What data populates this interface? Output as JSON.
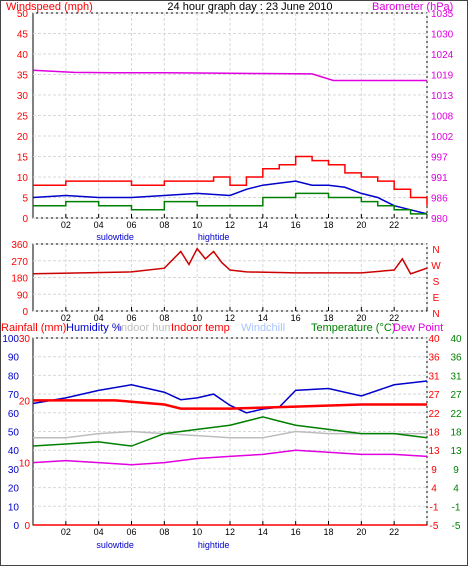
{
  "header": {
    "title": "24 hour graph day : 23 June 2010",
    "left_label": "Windspeed (mph)",
    "right_label": "Barometer (hPa)"
  },
  "colors": {
    "red": "#ff0000",
    "darkred": "#cc0000",
    "blue": "#0000cc",
    "green": "#008000",
    "magenta": "#e000e0",
    "gray": "#bdbdbd",
    "lightblue": "#aac4ff",
    "grid": "#d8d8d8"
  },
  "chart_data": [
    {
      "type": "line",
      "panel": "wind",
      "title": "24 hour graph day : 23 June 2010",
      "x_ticks": [
        "02",
        "04",
        "06",
        "08",
        "10",
        "12",
        "14",
        "16",
        "18",
        "20",
        "22",
        ""
      ],
      "x_annotations": [
        {
          "text": "sulowtide",
          "near_hour": 5
        },
        {
          "text": "hightide",
          "near_hour": 11
        }
      ],
      "left_axis": {
        "label": "Windspeed (mph)",
        "ticks": [
          0,
          5,
          10,
          15,
          20,
          25,
          30,
          35,
          40,
          45,
          50
        ],
        "range": [
          0,
          50
        ]
      },
      "right_axis": {
        "label": "Barometer (hPa)",
        "ticks": [
          "980",
          "986",
          "991",
          "997",
          "1002",
          "1008",
          "1013",
          "1019",
          "1024",
          "1030",
          "1035"
        ],
        "range": [
          980,
          1035.9
        ]
      },
      "grid": true,
      "series": [
        {
          "name": "Windspeed (mph)",
          "color": "red",
          "axis": "left",
          "style": "step",
          "x": [
            0,
            2,
            4,
            6,
            8,
            10,
            11,
            12,
            13,
            14,
            15,
            16,
            17,
            18,
            19,
            20,
            21,
            22,
            23,
            24
          ],
          "y": [
            8,
            9,
            9,
            8,
            9,
            9,
            10,
            8,
            10,
            12,
            13,
            15,
            14,
            13,
            11,
            10,
            9,
            7,
            5,
            3
          ]
        },
        {
          "name": "Windspeed average",
          "color": "blue",
          "axis": "left",
          "x": [
            0,
            2,
            4,
            6,
            8,
            10,
            12,
            13,
            14,
            15,
            16,
            17,
            18,
            19,
            20,
            21,
            22,
            23,
            24
          ],
          "y": [
            5,
            5.5,
            5,
            5,
            5.5,
            6,
            5.5,
            7,
            8,
            8.5,
            9,
            8,
            8,
            7.5,
            6,
            5,
            3,
            2,
            1
          ]
        },
        {
          "name": "Wind gust",
          "color": "green",
          "axis": "left",
          "style": "step",
          "x": [
            0,
            2,
            4,
            6,
            8,
            10,
            12,
            14,
            16,
            18,
            20,
            21,
            22,
            23,
            24
          ],
          "y": [
            3,
            4,
            3,
            2,
            4,
            3,
            3,
            5,
            6,
            5,
            4,
            3,
            2,
            1,
            1
          ]
        },
        {
          "name": "Barometer (hPa)",
          "color": "magenta",
          "axis": "right",
          "x": [
            0,
            2.5,
            5,
            8,
            11,
            14,
            17,
            18.3,
            24
          ],
          "y": [
            1020.3,
            1019.7,
            1019.6,
            1019.6,
            1019.5,
            1019.4,
            1019.3,
            1017.5,
            1017.5
          ]
        }
      ]
    },
    {
      "type": "line",
      "panel": "direction",
      "x_ticks": [
        "02",
        "04",
        "06",
        "08",
        "10",
        "12",
        "14",
        "16",
        "18",
        "20",
        "22",
        ""
      ],
      "left_axis": {
        "ticks": [
          0,
          90,
          180,
          270,
          360
        ],
        "range": [
          0,
          360
        ]
      },
      "right_axis": {
        "ticks": [
          "N",
          "E",
          "S",
          "W",
          "N"
        ]
      },
      "grid": true,
      "series": [
        {
          "name": "Wind direction",
          "color": "darkred",
          "x": [
            0,
            3,
            6,
            8,
            9,
            9.5,
            10,
            10.5,
            11,
            11.5,
            12,
            13,
            16,
            20,
            22,
            22.5,
            23,
            23.5,
            24
          ],
          "y": [
            200,
            205,
            210,
            230,
            320,
            250,
            335,
            280,
            320,
            260,
            220,
            210,
            205,
            205,
            220,
            280,
            200,
            215,
            230
          ]
        }
      ]
    },
    {
      "type": "line",
      "panel": "temperature",
      "x_ticks": [
        "02",
        "04",
        "06",
        "08",
        "10",
        "12",
        "14",
        "16",
        "18",
        "20",
        "22",
        ""
      ],
      "x_annotations": [
        {
          "text": "sulowtide",
          "near_hour": 5
        },
        {
          "text": "hightide",
          "near_hour": 11
        }
      ],
      "legend": [
        {
          "text": "Rainfall (mm)",
          "color": "red"
        },
        {
          "text": "Humidity %",
          "color": "blue"
        },
        {
          "text": "Indoor hum",
          "color": "gray"
        },
        {
          "text": "Indoor temp",
          "color": "red"
        },
        {
          "text": "Windchill",
          "color": "lightblue"
        },
        {
          "text": "Temperature (°C)",
          "color": "green"
        },
        {
          "text": "Dew Point",
          "color": "magenta"
        }
      ],
      "axes": {
        "rain_left": [
          "0",
          "10",
          "20",
          "30"
        ],
        "humidity": [
          "0",
          "10",
          "20",
          "30",
          "40",
          "50",
          "60",
          "70",
          "80",
          "90",
          "100"
        ],
        "temp_right_inner": [
          "-5",
          "-1",
          "4",
          "9",
          "13",
          "18",
          "22",
          "27",
          "31",
          "36",
          "40"
        ],
        "temp_right_outer": [
          "-5",
          "-1",
          "4",
          "9",
          "13",
          "18",
          "22",
          "27",
          "31",
          "36",
          "40"
        ]
      },
      "temp_range": [
        -5,
        40
      ],
      "grid": true,
      "series": [
        {
          "name": "Humidity %",
          "color": "blue",
          "axis": "humidity",
          "x": [
            0,
            2,
            4,
            6,
            8,
            9,
            10,
            11,
            12,
            13,
            14,
            15,
            16,
            18,
            20,
            22,
            24
          ],
          "y": [
            65,
            68,
            72,
            75,
            71,
            67,
            68,
            70,
            64,
            60,
            62,
            63,
            72,
            73,
            69,
            75,
            77
          ]
        },
        {
          "name": "Indoor temp",
          "color": "red",
          "axis": "temp",
          "x": [
            0,
            5,
            8,
            9,
            12,
            16,
            20,
            24
          ],
          "y": [
            25,
            25,
            24,
            23,
            23,
            23.5,
            24,
            24
          ]
        },
        {
          "name": "Indoor hum",
          "color": "gray",
          "axis": "temp",
          "x": [
            0,
            2,
            4,
            6,
            8,
            10,
            12,
            14,
            16,
            18,
            20,
            22,
            24
          ],
          "y": [
            16,
            16,
            17,
            17.5,
            17,
            16.5,
            16,
            16,
            17.5,
            17,
            17,
            17,
            17
          ]
        },
        {
          "name": "Temperature (°C)",
          "color": "green",
          "axis": "temp",
          "x": [
            0,
            2,
            4,
            6,
            8,
            10,
            12,
            14,
            15,
            16,
            18,
            20,
            22,
            24
          ],
          "y": [
            14,
            14.5,
            15,
            14,
            17,
            18,
            19,
            21,
            20,
            19,
            18,
            17,
            17,
            16
          ]
        },
        {
          "name": "Dew Point",
          "color": "magenta",
          "axis": "temp",
          "x": [
            0,
            2,
            4,
            6,
            8,
            10,
            12,
            14,
            16,
            18,
            20,
            22,
            24
          ],
          "y": [
            10,
            10.5,
            10,
            9.5,
            10,
            11,
            11.5,
            12,
            13,
            12.5,
            12,
            12,
            11.5
          ]
        },
        {
          "name": "Rainfall (mm)",
          "color": "red",
          "axis": "temp",
          "x": [
            0,
            24
          ],
          "y": [
            -5,
            -5
          ]
        }
      ]
    }
  ]
}
